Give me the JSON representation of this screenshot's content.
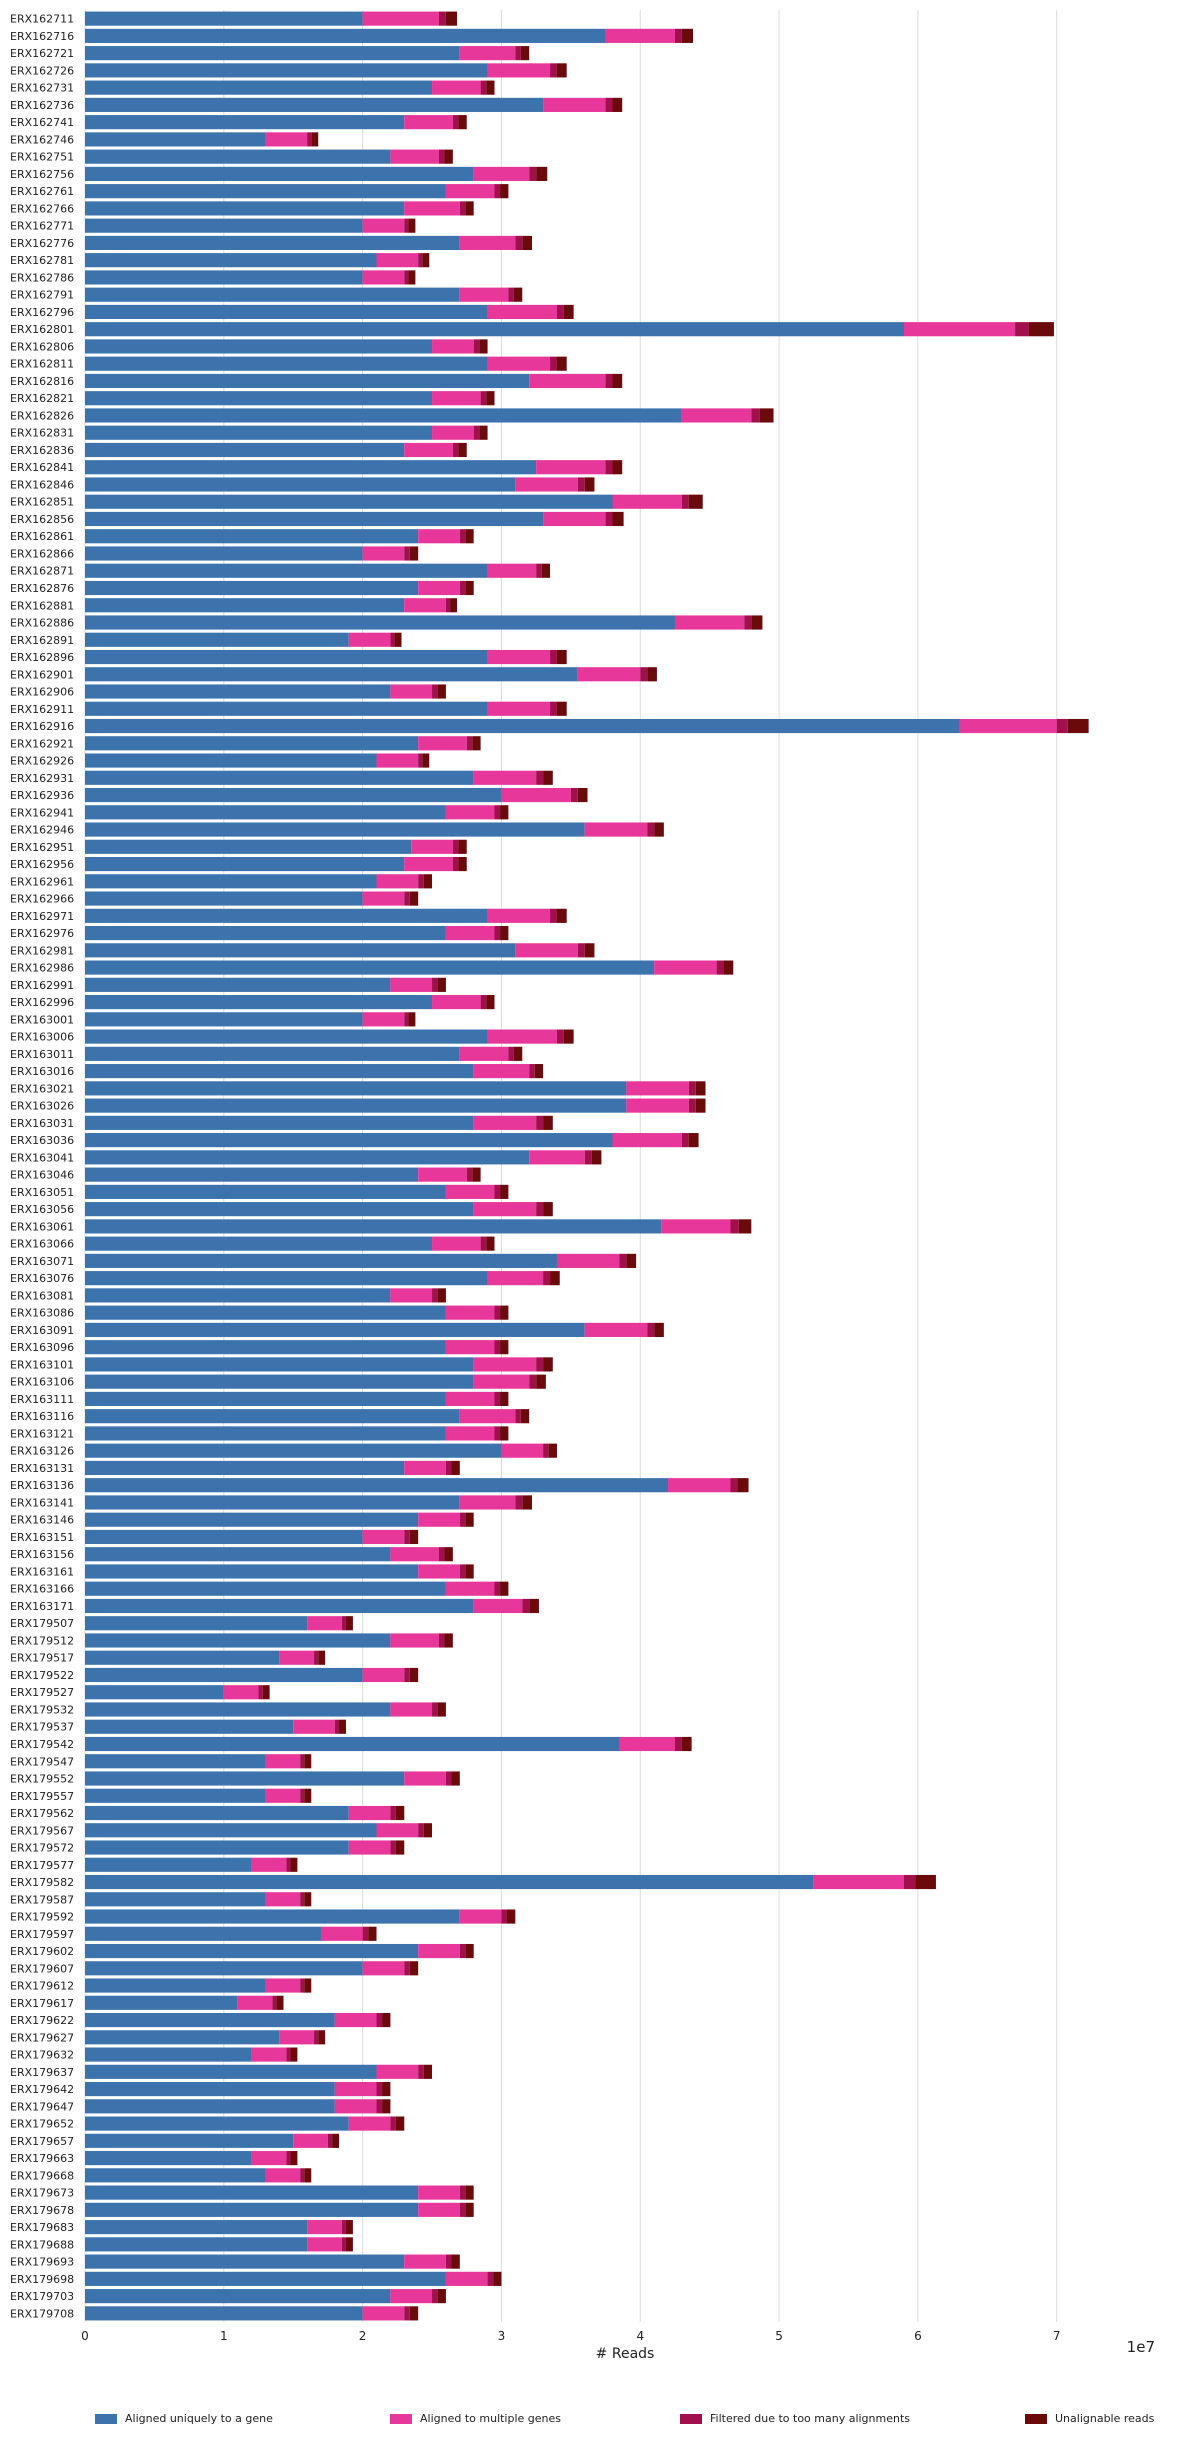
{
  "chart_data": {
    "type": "bar",
    "orientation": "horizontal",
    "stacked": true,
    "xlabel": "# Reads",
    "x_exponent_label": "1e7",
    "xlim": [
      0,
      7.6
    ],
    "x_ticks": [
      0,
      1,
      2,
      3,
      4,
      5,
      6,
      7
    ],
    "x_tick_labels": [
      "0",
      "1",
      "2",
      "3",
      "4",
      "5",
      "6",
      "7"
    ],
    "x_unit": "1e7 reads",
    "grid": "vertical",
    "legend_position": "bottom",
    "colors": {
      "Aligned uniquely to a gene": "#3d73ad",
      "Aligned to multiple genes": "#e8379a",
      "Filtered due to too many alignments": "#a1104c",
      "Unalignable reads": "#6b0a0a"
    },
    "series_names": [
      "Aligned uniquely to a gene",
      "Aligned to multiple genes",
      "Filtered due to too many alignments",
      "Unalignable reads"
    ],
    "categories": [
      "ERX162711",
      "ERX162716",
      "ERX162721",
      "ERX162726",
      "ERX162731",
      "ERX162736",
      "ERX162741",
      "ERX162746",
      "ERX162751",
      "ERX162756",
      "ERX162761",
      "ERX162766",
      "ERX162771",
      "ERX162776",
      "ERX162781",
      "ERX162786",
      "ERX162791",
      "ERX162796",
      "ERX162801",
      "ERX162806",
      "ERX162811",
      "ERX162816",
      "ERX162821",
      "ERX162826",
      "ERX162831",
      "ERX162836",
      "ERX162841",
      "ERX162846",
      "ERX162851",
      "ERX162856",
      "ERX162861",
      "ERX162866",
      "ERX162871",
      "ERX162876",
      "ERX162881",
      "ERX162886",
      "ERX162891",
      "ERX162896",
      "ERX162901",
      "ERX162906",
      "ERX162911",
      "ERX162916",
      "ERX162921",
      "ERX162926",
      "ERX162931",
      "ERX162936",
      "ERX162941",
      "ERX162946",
      "ERX162951",
      "ERX162956",
      "ERX162961",
      "ERX162966",
      "ERX162971",
      "ERX162976",
      "ERX162981",
      "ERX162986",
      "ERX162991",
      "ERX162996",
      "ERX163001",
      "ERX163006",
      "ERX163011",
      "ERX163016",
      "ERX163021",
      "ERX163026",
      "ERX163031",
      "ERX163036",
      "ERX163041",
      "ERX163046",
      "ERX163051",
      "ERX163056",
      "ERX163061",
      "ERX163066",
      "ERX163071",
      "ERX163076",
      "ERX163081",
      "ERX163086",
      "ERX163091",
      "ERX163096",
      "ERX163101",
      "ERX163106",
      "ERX163111",
      "ERX163116",
      "ERX163121",
      "ERX163126",
      "ERX163131",
      "ERX163136",
      "ERX163141",
      "ERX163146",
      "ERX163151",
      "ERX163156",
      "ERX163161",
      "ERX163166",
      "ERX163171",
      "ERX179507",
      "ERX179512",
      "ERX179517",
      "ERX179522",
      "ERX179527",
      "ERX179532",
      "ERX179537",
      "ERX179542",
      "ERX179547",
      "ERX179552",
      "ERX179557",
      "ERX179562",
      "ERX179567",
      "ERX179572",
      "ERX179577",
      "ERX179582",
      "ERX179587",
      "ERX179592",
      "ERX179597",
      "ERX179602",
      "ERX179607",
      "ERX179612",
      "ERX179617",
      "ERX179622",
      "ERX179627",
      "ERX179632",
      "ERX179637",
      "ERX179642",
      "ERX179647",
      "ERX179652",
      "ERX179657",
      "ERX179663",
      "ERX179668",
      "ERX179673",
      "ERX179678",
      "ERX179683",
      "ERX179688",
      "ERX179693",
      "ERX179698",
      "ERX179703",
      "ERX179708"
    ],
    "series": [
      {
        "name": "Aligned uniquely to a gene",
        "values": [
          2.0,
          3.75,
          2.7,
          2.9,
          2.5,
          3.3,
          2.3,
          1.3,
          2.2,
          2.8,
          2.6,
          2.3,
          2.0,
          2.7,
          2.1,
          2.0,
          2.7,
          2.9,
          5.9,
          2.5,
          2.9,
          3.2,
          2.5,
          4.3,
          2.5,
          2.3,
          3.25,
          3.1,
          3.8,
          3.3,
          2.4,
          2.0,
          2.9,
          2.4,
          2.3,
          4.25,
          1.9,
          2.9,
          3.55,
          2.2,
          2.9,
          6.3,
          2.4,
          2.1,
          2.8,
          3.0,
          2.6,
          3.6,
          2.35,
          2.3,
          2.1,
          2.0,
          2.9,
          2.6,
          3.1,
          4.1,
          2.2,
          2.5,
          2.0,
          2.9,
          2.7,
          2.8,
          3.9,
          3.9,
          2.8,
          3.8,
          3.2,
          2.4,
          2.6,
          2.8,
          4.15,
          2.5,
          3.4,
          2.9,
          2.2,
          2.6,
          3.6,
          2.6,
          2.8,
          2.8,
          2.6,
          2.7,
          2.6,
          3.0,
          2.3,
          4.2,
          2.7,
          2.4,
          2.0,
          2.2,
          2.4,
          2.6,
          2.8,
          1.6,
          2.2,
          1.4,
          2.0,
          1.0,
          2.2,
          1.5,
          3.85,
          1.3,
          2.3,
          1.3,
          1.9,
          2.1,
          1.9,
          1.2,
          5.25,
          1.3,
          2.7,
          1.7,
          2.4,
          2.0,
          1.3,
          1.1,
          1.8,
          1.4,
          1.2,
          2.1,
          1.8,
          1.8,
          1.9,
          1.5,
          1.2,
          1.3,
          2.4,
          2.4,
          1.6,
          1.6,
          2.3,
          2.6,
          2.2,
          2.0
        ]
      },
      {
        "name": "Aligned to multiple genes",
        "values": [
          0.55,
          0.5,
          0.4,
          0.45,
          0.35,
          0.45,
          0.35,
          0.3,
          0.35,
          0.4,
          0.35,
          0.4,
          0.3,
          0.4,
          0.3,
          0.3,
          0.35,
          0.5,
          0.8,
          0.3,
          0.45,
          0.55,
          0.35,
          0.5,
          0.3,
          0.35,
          0.5,
          0.45,
          0.5,
          0.45,
          0.3,
          0.3,
          0.35,
          0.3,
          0.3,
          0.5,
          0.3,
          0.45,
          0.45,
          0.3,
          0.45,
          0.7,
          0.35,
          0.3,
          0.45,
          0.5,
          0.35,
          0.45,
          0.3,
          0.35,
          0.3,
          0.3,
          0.45,
          0.35,
          0.45,
          0.45,
          0.3,
          0.35,
          0.3,
          0.5,
          0.35,
          0.4,
          0.45,
          0.45,
          0.45,
          0.5,
          0.4,
          0.35,
          0.35,
          0.45,
          0.5,
          0.35,
          0.45,
          0.4,
          0.3,
          0.35,
          0.45,
          0.35,
          0.45,
          0.4,
          0.35,
          0.4,
          0.35,
          0.3,
          0.3,
          0.45,
          0.4,
          0.3,
          0.3,
          0.35,
          0.3,
          0.35,
          0.35,
          0.25,
          0.35,
          0.25,
          0.3,
          0.25,
          0.3,
          0.3,
          0.4,
          0.25,
          0.3,
          0.25,
          0.3,
          0.3,
          0.3,
          0.25,
          0.65,
          0.25,
          0.3,
          0.3,
          0.3,
          0.3,
          0.25,
          0.25,
          0.3,
          0.25,
          0.25,
          0.3,
          0.3,
          0.3,
          0.3,
          0.25,
          0.25,
          0.25,
          0.3,
          0.3,
          0.25,
          0.25,
          0.3,
          0.3,
          0.3,
          0.3
        ]
      },
      {
        "name": "Filtered due to too many alignments",
        "values": [
          0.05,
          0.05,
          0.04,
          0.05,
          0.04,
          0.05,
          0.04,
          0.03,
          0.04,
          0.05,
          0.04,
          0.04,
          0.03,
          0.05,
          0.03,
          0.03,
          0.04,
          0.05,
          0.1,
          0.04,
          0.05,
          0.05,
          0.04,
          0.06,
          0.04,
          0.04,
          0.05,
          0.05,
          0.05,
          0.05,
          0.04,
          0.04,
          0.04,
          0.04,
          0.03,
          0.05,
          0.03,
          0.05,
          0.05,
          0.04,
          0.05,
          0.08,
          0.04,
          0.03,
          0.05,
          0.05,
          0.04,
          0.05,
          0.04,
          0.04,
          0.04,
          0.04,
          0.05,
          0.04,
          0.05,
          0.05,
          0.04,
          0.04,
          0.03,
          0.05,
          0.04,
          0.04,
          0.05,
          0.05,
          0.05,
          0.05,
          0.05,
          0.04,
          0.04,
          0.05,
          0.06,
          0.04,
          0.05,
          0.05,
          0.04,
          0.04,
          0.05,
          0.04,
          0.05,
          0.05,
          0.04,
          0.04,
          0.04,
          0.04,
          0.04,
          0.05,
          0.05,
          0.04,
          0.04,
          0.04,
          0.04,
          0.04,
          0.05,
          0.03,
          0.04,
          0.03,
          0.04,
          0.03,
          0.04,
          0.03,
          0.05,
          0.03,
          0.04,
          0.03,
          0.04,
          0.04,
          0.04,
          0.03,
          0.08,
          0.03,
          0.04,
          0.04,
          0.04,
          0.04,
          0.03,
          0.03,
          0.04,
          0.03,
          0.03,
          0.04,
          0.04,
          0.04,
          0.04,
          0.03,
          0.03,
          0.03,
          0.04,
          0.04,
          0.03,
          0.03,
          0.04,
          0.04,
          0.04,
          0.04
        ]
      },
      {
        "name": "Unalignable reads",
        "values": [
          0.08,
          0.08,
          0.06,
          0.07,
          0.06,
          0.07,
          0.06,
          0.05,
          0.06,
          0.08,
          0.06,
          0.06,
          0.05,
          0.07,
          0.05,
          0.05,
          0.06,
          0.07,
          0.18,
          0.06,
          0.07,
          0.07,
          0.06,
          0.1,
          0.06,
          0.06,
          0.07,
          0.07,
          0.1,
          0.08,
          0.06,
          0.06,
          0.06,
          0.06,
          0.05,
          0.08,
          0.05,
          0.07,
          0.07,
          0.06,
          0.07,
          0.15,
          0.06,
          0.05,
          0.07,
          0.07,
          0.06,
          0.07,
          0.06,
          0.06,
          0.06,
          0.06,
          0.07,
          0.06,
          0.07,
          0.07,
          0.06,
          0.06,
          0.05,
          0.07,
          0.06,
          0.06,
          0.07,
          0.07,
          0.07,
          0.07,
          0.07,
          0.06,
          0.06,
          0.07,
          0.09,
          0.06,
          0.07,
          0.07,
          0.06,
          0.06,
          0.07,
          0.06,
          0.07,
          0.07,
          0.06,
          0.06,
          0.06,
          0.06,
          0.06,
          0.08,
          0.07,
          0.06,
          0.06,
          0.06,
          0.06,
          0.06,
          0.07,
          0.05,
          0.06,
          0.05,
          0.06,
          0.05,
          0.06,
          0.05,
          0.07,
          0.05,
          0.06,
          0.05,
          0.06,
          0.06,
          0.06,
          0.05,
          0.15,
          0.05,
          0.06,
          0.06,
          0.06,
          0.06,
          0.05,
          0.05,
          0.06,
          0.05,
          0.05,
          0.06,
          0.06,
          0.06,
          0.06,
          0.05,
          0.05,
          0.05,
          0.06,
          0.06,
          0.05,
          0.05,
          0.06,
          0.06,
          0.06,
          0.06
        ]
      }
    ]
  }
}
